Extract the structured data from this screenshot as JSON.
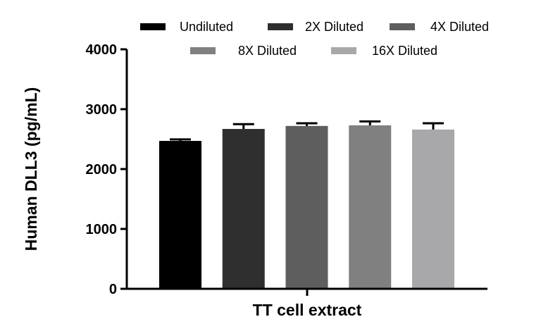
{
  "chart_data": {
    "type": "bar",
    "xlabel": "TT cell extract",
    "ylabel": "Human DLL3 (pg/mL)",
    "ylim": [
      0,
      4000
    ],
    "yticks": [
      "0",
      "1000",
      "2000",
      "3000",
      "4000"
    ],
    "grid": false,
    "legend_position": "top",
    "series": [
      {
        "name": "Undiluted",
        "value": 2470,
        "error": 25,
        "color": "#000000"
      },
      {
        "name": "2X Diluted",
        "value": 2670,
        "error": 80,
        "color": "#2f2f2f"
      },
      {
        "name": "4X Diluted",
        "value": 2720,
        "error": 45,
        "color": "#5e5e5e"
      },
      {
        "name": "8X Diluted",
        "value": 2730,
        "error": 65,
        "color": "#808080"
      },
      {
        "name": "16X Diluted",
        "value": 2660,
        "error": 105,
        "color": "#a8a8aa"
      }
    ]
  }
}
